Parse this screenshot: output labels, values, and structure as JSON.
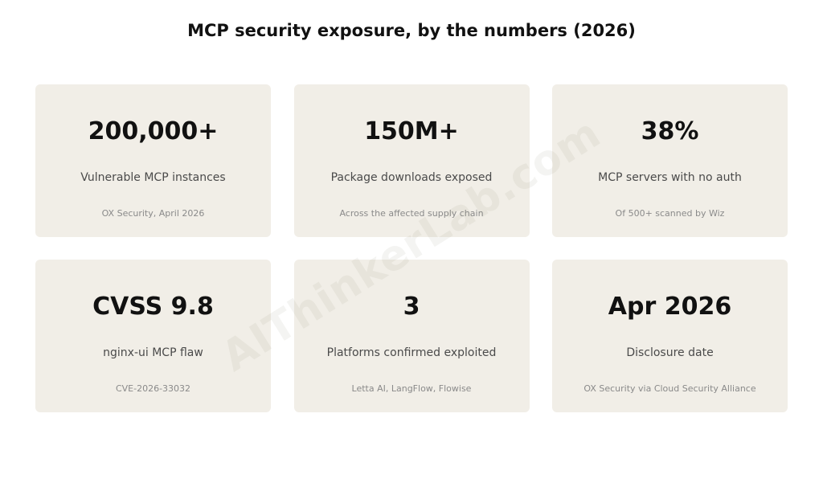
{
  "title": "MCP security exposure, by the numbers (2026)",
  "cards": [
    {
      "value": "200,000+",
      "label": "Vulnerable MCP instances",
      "source": "OX Security, April 2026"
    },
    {
      "value": "150M+",
      "label": "Package downloads exposed",
      "source": "Across the affected supply chain"
    },
    {
      "value": "38%",
      "label": "MCP servers with no auth",
      "source": "Of 500+ scanned by Wiz"
    },
    {
      "value": "CVSS 9.8",
      "label": "nginx-ui MCP flaw",
      "source": "CVE-2026-33032"
    },
    {
      "value": "3",
      "label": "Platforms confirmed exploited",
      "source": "Letta AI, LangFlow, Flowise"
    },
    {
      "value": "Apr 2026",
      "label": "Disclosure date",
      "source": "OX Security via Cloud Security Alliance"
    }
  ],
  "watermark": "AIThinkerLab.com",
  "colors": {
    "card_background": "#f1eee7",
    "value_text": "#111111",
    "label_text": "#4a4a4a",
    "source_text": "#8a8a8a"
  }
}
